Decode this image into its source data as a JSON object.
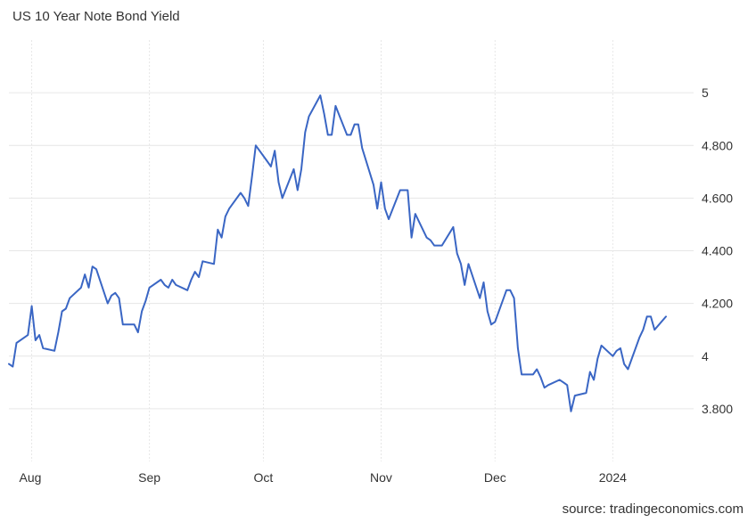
{
  "chart_data": {
    "type": "line",
    "title": "US 10 Year Note Bond Yield",
    "source": "source: tradingeconomics.com",
    "xlabel": "",
    "ylabel": "",
    "x_tick_labels": [
      "Aug",
      "Sep",
      "Oct",
      "Nov",
      "Dec",
      "2024"
    ],
    "y_ticks": [
      {
        "value": 3.8,
        "label": "3.800"
      },
      {
        "value": 4.0,
        "label": "4"
      },
      {
        "value": 4.2,
        "label": "4.200"
      },
      {
        "value": 4.4,
        "label": "4.400"
      },
      {
        "value": 4.6,
        "label": "4.600"
      },
      {
        "value": 4.8,
        "label": "4.800"
      },
      {
        "value": 5.0,
        "label": "5"
      }
    ],
    "ylim": [
      3.6,
      5.2
    ],
    "y_axis_position": "right",
    "grid": true,
    "legend": "none",
    "series": [
      {
        "color": "#3a66c4",
        "points": [
          [
            "2023-07-26",
            3.97
          ],
          [
            "2023-07-27",
            3.96
          ],
          [
            "2023-07-28",
            4.05
          ],
          [
            "2023-07-31",
            4.08
          ],
          [
            "2023-08-01",
            4.19
          ],
          [
            "2023-08-02",
            4.06
          ],
          [
            "2023-08-03",
            4.08
          ],
          [
            "2023-08-04",
            4.03
          ],
          [
            "2023-08-07",
            4.02
          ],
          [
            "2023-08-08",
            4.09
          ],
          [
            "2023-08-09",
            4.17
          ],
          [
            "2023-08-10",
            4.18
          ],
          [
            "2023-08-11",
            4.22
          ],
          [
            "2023-08-14",
            4.26
          ],
          [
            "2023-08-15",
            4.31
          ],
          [
            "2023-08-16",
            4.26
          ],
          [
            "2023-08-17",
            4.34
          ],
          [
            "2023-08-18",
            4.33
          ],
          [
            "2023-08-21",
            4.2
          ],
          [
            "2023-08-22",
            4.23
          ],
          [
            "2023-08-23",
            4.24
          ],
          [
            "2023-08-24",
            4.22
          ],
          [
            "2023-08-25",
            4.12
          ],
          [
            "2023-08-28",
            4.12
          ],
          [
            "2023-08-29",
            4.09
          ],
          [
            "2023-08-30",
            4.17
          ],
          [
            "2023-08-31",
            4.21
          ],
          [
            "2023-09-01",
            4.26
          ],
          [
            "2023-09-04",
            4.29
          ],
          [
            "2023-09-05",
            4.27
          ],
          [
            "2023-09-06",
            4.26
          ],
          [
            "2023-09-07",
            4.29
          ],
          [
            "2023-09-08",
            4.27
          ],
          [
            "2023-09-11",
            4.25
          ],
          [
            "2023-09-12",
            4.29
          ],
          [
            "2023-09-13",
            4.32
          ],
          [
            "2023-09-14",
            4.3
          ],
          [
            "2023-09-15",
            4.36
          ],
          [
            "2023-09-18",
            4.35
          ],
          [
            "2023-09-19",
            4.48
          ],
          [
            "2023-09-20",
            4.45
          ],
          [
            "2023-09-21",
            4.53
          ],
          [
            "2023-09-22",
            4.56
          ],
          [
            "2023-09-25",
            4.62
          ],
          [
            "2023-09-26",
            4.6
          ],
          [
            "2023-09-27",
            4.57
          ],
          [
            "2023-09-28",
            4.68
          ],
          [
            "2023-09-29",
            4.8
          ],
          [
            "2023-10-02",
            4.74
          ],
          [
            "2023-10-03",
            4.72
          ],
          [
            "2023-10-04",
            4.78
          ],
          [
            "2023-10-05",
            4.66
          ],
          [
            "2023-10-06",
            4.6
          ],
          [
            "2023-10-09",
            4.71
          ],
          [
            "2023-10-10",
            4.63
          ],
          [
            "2023-10-11",
            4.71
          ],
          [
            "2023-10-12",
            4.85
          ],
          [
            "2023-10-13",
            4.91
          ],
          [
            "2023-10-16",
            4.99
          ],
          [
            "2023-10-17",
            4.92
          ],
          [
            "2023-10-18",
            4.84
          ],
          [
            "2023-10-19",
            4.84
          ],
          [
            "2023-10-20",
            4.95
          ],
          [
            "2023-10-23",
            4.84
          ],
          [
            "2023-10-24",
            4.84
          ],
          [
            "2023-10-25",
            4.88
          ],
          [
            "2023-10-26",
            4.88
          ],
          [
            "2023-10-27",
            4.79
          ],
          [
            "2023-10-30",
            4.65
          ],
          [
            "2023-10-31",
            4.56
          ],
          [
            "2023-11-01",
            4.66
          ],
          [
            "2023-11-02",
            4.56
          ],
          [
            "2023-11-03",
            4.52
          ],
          [
            "2023-11-06",
            4.63
          ],
          [
            "2023-11-07",
            4.63
          ],
          [
            "2023-11-08",
            4.63
          ],
          [
            "2023-11-09",
            4.45
          ],
          [
            "2023-11-10",
            4.54
          ],
          [
            "2023-11-13",
            4.45
          ],
          [
            "2023-11-14",
            4.44
          ],
          [
            "2023-11-15",
            4.42
          ],
          [
            "2023-11-16",
            4.42
          ],
          [
            "2023-11-17",
            4.42
          ],
          [
            "2023-11-20",
            4.49
          ],
          [
            "2023-11-21",
            4.39
          ],
          [
            "2023-11-22",
            4.35
          ],
          [
            "2023-11-23",
            4.27
          ],
          [
            "2023-11-24",
            4.35
          ],
          [
            "2023-11-27",
            4.22
          ],
          [
            "2023-11-28",
            4.28
          ],
          [
            "2023-11-29",
            4.17
          ],
          [
            "2023-11-30",
            4.12
          ],
          [
            "2023-12-01",
            4.13
          ],
          [
            "2023-12-04",
            4.25
          ],
          [
            "2023-12-05",
            4.25
          ],
          [
            "2023-12-06",
            4.22
          ],
          [
            "2023-12-07",
            4.03
          ],
          [
            "2023-12-08",
            3.93
          ],
          [
            "2023-12-11",
            3.93
          ],
          [
            "2023-12-12",
            3.95
          ],
          [
            "2023-12-13",
            3.92
          ],
          [
            "2023-12-14",
            3.88
          ],
          [
            "2023-12-15",
            3.89
          ],
          [
            "2023-12-18",
            3.91
          ],
          [
            "2023-12-19",
            3.9
          ],
          [
            "2023-12-20",
            3.89
          ],
          [
            "2023-12-21",
            3.79
          ],
          [
            "2023-12-22",
            3.85
          ],
          [
            "2023-12-25",
            3.86
          ],
          [
            "2023-12-26",
            3.94
          ],
          [
            "2023-12-27",
            3.91
          ],
          [
            "2023-12-28",
            3.99
          ],
          [
            "2023-12-29",
            4.04
          ],
          [
            "2024-01-01",
            4.0
          ],
          [
            "2024-01-02",
            4.02
          ],
          [
            "2024-01-03",
            4.03
          ],
          [
            "2024-01-04",
            3.97
          ],
          [
            "2024-01-05",
            3.95
          ],
          [
            "2024-01-08",
            4.07
          ],
          [
            "2024-01-09",
            4.1
          ],
          [
            "2024-01-10",
            4.15
          ],
          [
            "2024-01-11",
            4.15
          ],
          [
            "2024-01-12",
            4.1
          ],
          [
            "2024-01-15",
            4.15
          ]
        ]
      }
    ]
  }
}
